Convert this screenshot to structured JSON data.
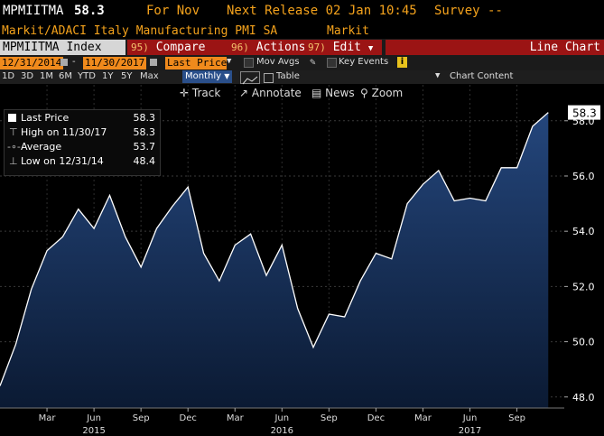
{
  "header": {
    "ticker": "MPMIITMA",
    "last_value": "58.3",
    "for_label": "For Nov",
    "next_release": "Next Release 02 Jan 10:45",
    "survey": "Survey --",
    "description": "Markit/ADACI Italy Manufacturing PMI SA",
    "source": "Markit"
  },
  "toolbar": {
    "security": "MPMIITMA Index",
    "compare_num": "95)",
    "compare_label": "Compare",
    "actions_num": "96)",
    "actions_label": "Actions",
    "edit_num": "97)",
    "edit_label": "Edit",
    "chart_type": "Line Chart"
  },
  "range": {
    "start": "12/31/2014",
    "end": "11/30/2017",
    "field": "Last Price",
    "mov_avgs": "Mov Avgs",
    "key_events": "Key Events"
  },
  "periods": [
    "1D",
    "3D",
    "1M",
    "6M",
    "YTD",
    "1Y",
    "5Y",
    "Max"
  ],
  "frequency": "Monthly",
  "table_label": "Table",
  "chart_content_label": "Chart Content",
  "tools": {
    "track": "Track",
    "annotate": "Annotate",
    "news": "News",
    "zoom": "Zoom"
  },
  "legend": {
    "last_label": "Last Price",
    "last_value": "58.3",
    "high_label": "High on 11/30/17",
    "high_value": "58.3",
    "avg_label": "Average",
    "avg_value": "53.7",
    "low_label": "Low on 12/31/14",
    "low_value": "48.4"
  },
  "colors": {
    "line": "#ffffff",
    "fill_top": "#1f3a66",
    "fill_bottom": "#0b1830",
    "accent": "#f4a21c",
    "button_red": "#9b1414"
  },
  "chart_data": {
    "type": "area",
    "title": "",
    "xlabel": "",
    "ylabel": "",
    "ylim": [
      47.6,
      59.3
    ],
    "yticks": [
      "48.0",
      "50.0",
      "52.0",
      "54.0",
      "56.0",
      "58.0"
    ],
    "last_marker": "58.3",
    "x": [
      "2014-12",
      "2015-01",
      "2015-02",
      "2015-03",
      "2015-04",
      "2015-05",
      "2015-06",
      "2015-07",
      "2015-08",
      "2015-09",
      "2015-10",
      "2015-11",
      "2015-12",
      "2016-01",
      "2016-02",
      "2016-03",
      "2016-04",
      "2016-05",
      "2016-06",
      "2016-07",
      "2016-08",
      "2016-09",
      "2016-10",
      "2016-11",
      "2016-12",
      "2017-01",
      "2017-02",
      "2017-03",
      "2017-04",
      "2017-05",
      "2017-06",
      "2017-07",
      "2017-08",
      "2017-09",
      "2017-10",
      "2017-11"
    ],
    "values": [
      48.4,
      49.9,
      51.9,
      53.3,
      53.8,
      54.8,
      54.1,
      55.3,
      53.8,
      52.7,
      54.1,
      54.9,
      55.6,
      53.2,
      52.2,
      53.5,
      53.9,
      52.4,
      53.5,
      51.2,
      49.8,
      51.0,
      50.9,
      52.2,
      53.2,
      53.0,
      55.0,
      55.7,
      56.2,
      55.1,
      55.2,
      55.1,
      56.3,
      56.3,
      57.8,
      58.3
    ],
    "xticks": [
      {
        "idx": 3,
        "label": "Mar"
      },
      {
        "idx": 6,
        "label": "Jun"
      },
      {
        "idx": 9,
        "label": "Sep"
      },
      {
        "idx": 12,
        "label": "Dec"
      },
      {
        "idx": 15,
        "label": "Mar"
      },
      {
        "idx": 18,
        "label": "Jun"
      },
      {
        "idx": 21,
        "label": "Sep"
      },
      {
        "idx": 24,
        "label": "Dec"
      },
      {
        "idx": 27,
        "label": "Mar"
      },
      {
        "idx": 30,
        "label": "Jun"
      },
      {
        "idx": 33,
        "label": "Sep"
      }
    ],
    "years": [
      {
        "idx": 6,
        "label": "2015"
      },
      {
        "idx": 18,
        "label": "2016"
      },
      {
        "idx": 30,
        "label": "2017"
      }
    ],
    "grid": true,
    "legend_position": "top-left"
  }
}
